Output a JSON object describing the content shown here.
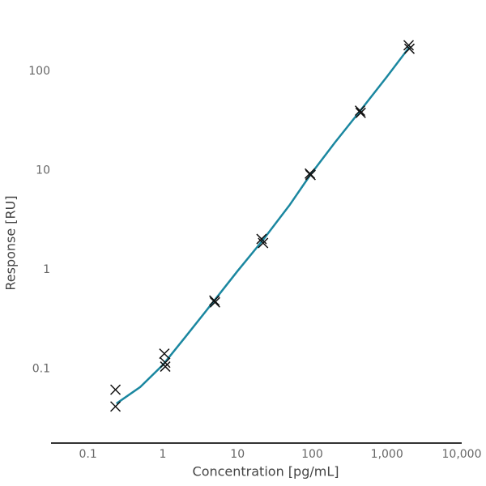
{
  "chart_data": {
    "type": "scatter",
    "xlabel": "Concentration [pg/mL]",
    "ylabel": "Response [RU]",
    "xscale": "log",
    "yscale": "log",
    "xlim": [
      0.032,
      10000
    ],
    "ylim": [
      0.018,
      250
    ],
    "xticks": [
      0.1,
      1,
      10,
      100,
      {
        "value": 1000,
        "label": "1,000"
      },
      {
        "value": 10000,
        "label": "10,000"
      }
    ],
    "yticks": [
      0.1,
      1,
      10,
      100
    ],
    "grid": false,
    "series": [
      {
        "type": "line",
        "color": "#1a87a0",
        "x": [
          0.24,
          0.5,
          1,
          2,
          5,
          10,
          22,
          50,
          95,
          200,
          440,
          1000,
          2000
        ],
        "values": [
          0.045,
          0.066,
          0.11,
          0.21,
          0.5,
          0.97,
          2.0,
          4.5,
          9.1,
          19,
          40,
          88,
          175
        ]
      },
      {
        "type": "scatter",
        "color": "#111111",
        "x": [
          0.233,
          0.233,
          1.05,
          1.08,
          1.08,
          4.9,
          5.0,
          21,
          22,
          93,
          95,
          436,
          445,
          1950,
          2000
        ],
        "values": [
          0.062,
          0.042,
          0.143,
          0.116,
          0.106,
          0.49,
          0.47,
          2.04,
          1.86,
          9.3,
          9.0,
          40,
          38,
          182,
          168
        ]
      }
    ]
  }
}
